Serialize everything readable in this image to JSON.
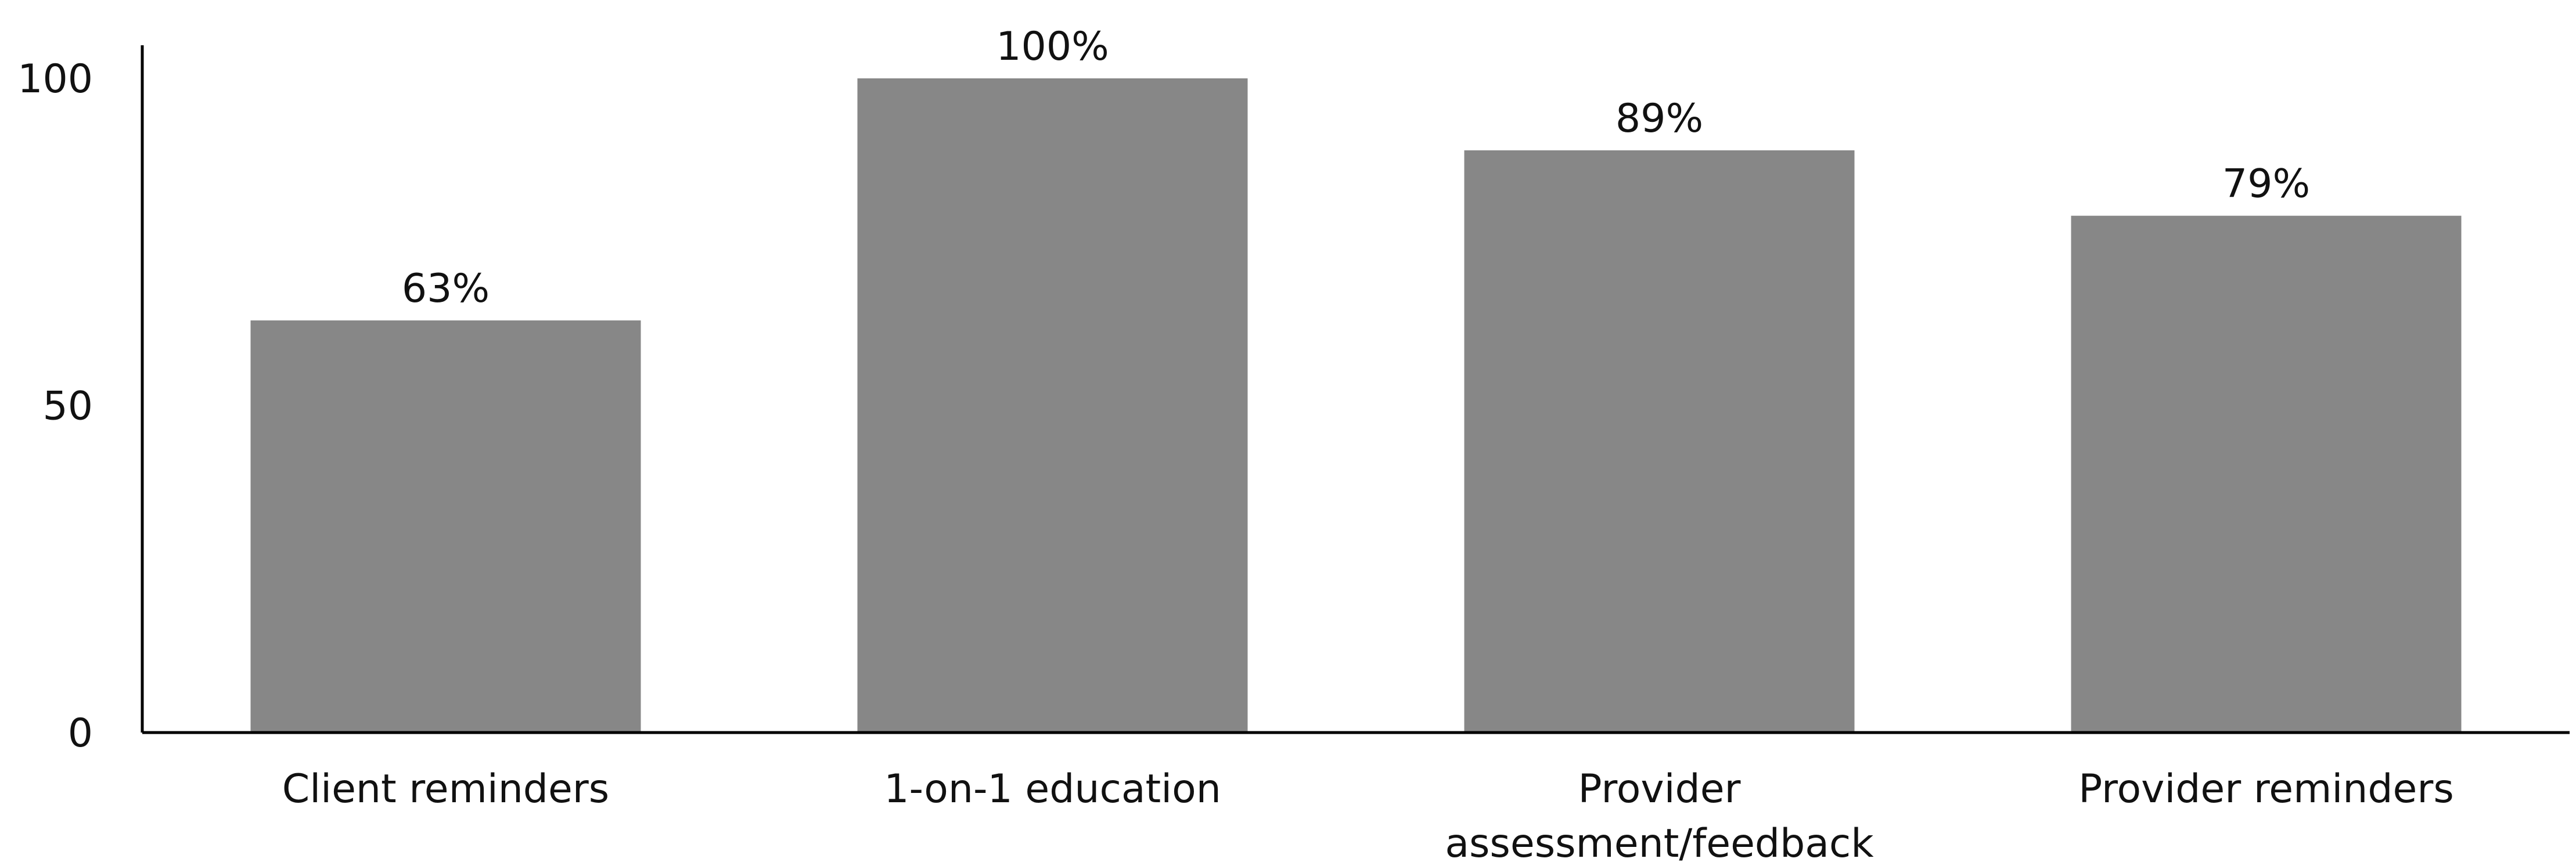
{
  "chart_data": {
    "type": "bar",
    "categories": [
      [
        "Client reminders"
      ],
      [
        "1-on-1 education"
      ],
      [
        "Provider",
        "assessment/feedback"
      ],
      [
        "Provider reminders"
      ]
    ],
    "values": [
      63,
      100,
      89,
      79
    ],
    "data_labels": [
      "63%",
      "100%",
      "89%",
      "79%"
    ],
    "ylim": [
      0,
      100
    ],
    "yticks": [
      0,
      50,
      100
    ],
    "ytick_labels": [
      "0",
      "50",
      "100"
    ],
    "title": "",
    "xlabel": "",
    "ylabel": "",
    "grid": false,
    "bar_color": "#878787",
    "axis_color": "#000000"
  }
}
